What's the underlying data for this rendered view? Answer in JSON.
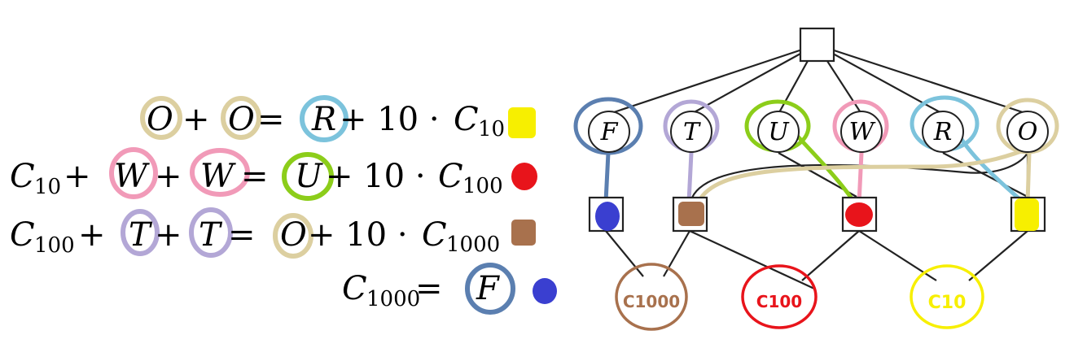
{
  "equations": [
    {
      "id": "ones-column",
      "parts": [
        {
          "t": "O",
          "k": "var"
        },
        {
          "t": " + ",
          "k": "op"
        },
        {
          "t": "O",
          "k": "var"
        },
        {
          "t": " = ",
          "k": "op"
        },
        {
          "t": "R",
          "k": "var"
        },
        {
          "t": " + 10 · ",
          "k": "op"
        },
        {
          "t": "C",
          "k": "var"
        }
      ],
      "carry_sub": "10",
      "marker_color": "#f7ef00"
    },
    {
      "id": "tens-column",
      "parts": [
        {
          "t": "C",
          "k": "var"
        },
        {
          "t": "10",
          "k": "sub"
        },
        {
          "t": " + ",
          "k": "op"
        },
        {
          "t": "W",
          "k": "var"
        },
        {
          "t": " + ",
          "k": "op"
        },
        {
          "t": "W",
          "k": "var"
        },
        {
          "t": " = ",
          "k": "op"
        },
        {
          "t": "U",
          "k": "var"
        },
        {
          "t": " + 10 · ",
          "k": "op"
        },
        {
          "t": "C",
          "k": "var"
        }
      ],
      "carry_sub": "100",
      "marker_color": "#e8141b"
    },
    {
      "id": "hundreds-column",
      "parts": [
        {
          "t": "C",
          "k": "var"
        },
        {
          "t": "100",
          "k": "sub"
        },
        {
          "t": " + ",
          "k": "op"
        },
        {
          "t": "T",
          "k": "var"
        },
        {
          "t": " + ",
          "k": "op"
        },
        {
          "t": "T",
          "k": "var"
        },
        {
          "t": " = ",
          "k": "op"
        },
        {
          "t": "O",
          "k": "var"
        },
        {
          "t": " + 10 · ",
          "k": "op"
        },
        {
          "t": "C",
          "k": "var"
        }
      ],
      "carry_sub": "1000",
      "marker_color": "#a8714d"
    },
    {
      "id": "thousands-column",
      "parts": [
        {
          "t": "C",
          "k": "var"
        },
        {
          "t": "1000",
          "k": "sub"
        },
        {
          "t": " = ",
          "k": "op"
        },
        {
          "t": "F",
          "k": "var"
        }
      ],
      "carry_sub": "",
      "marker_color": "#3a3fd0"
    }
  ],
  "graph": {
    "variables": [
      {
        "label": "F",
        "circle_color": "#5b7fb0"
      },
      {
        "label": "T",
        "circle_color": "#b3a7d6"
      },
      {
        "label": "U",
        "circle_color": "#8ccd1a"
      },
      {
        "label": "W",
        "circle_color": "#f19ab8"
      },
      {
        "label": "R",
        "circle_color": "#7cc3dc"
      },
      {
        "label": "O",
        "circle_color": "#dccfa0"
      }
    ],
    "constraint_colors": [
      "#3a3fd0",
      "#a8714d",
      "#e8141b",
      "#f7ef00"
    ],
    "carries": [
      {
        "label": "C1000",
        "color": "#a8714d"
      },
      {
        "label": "C100",
        "color": "#e8141b"
      },
      {
        "label": "C10",
        "color": "#f7ef00"
      }
    ]
  }
}
